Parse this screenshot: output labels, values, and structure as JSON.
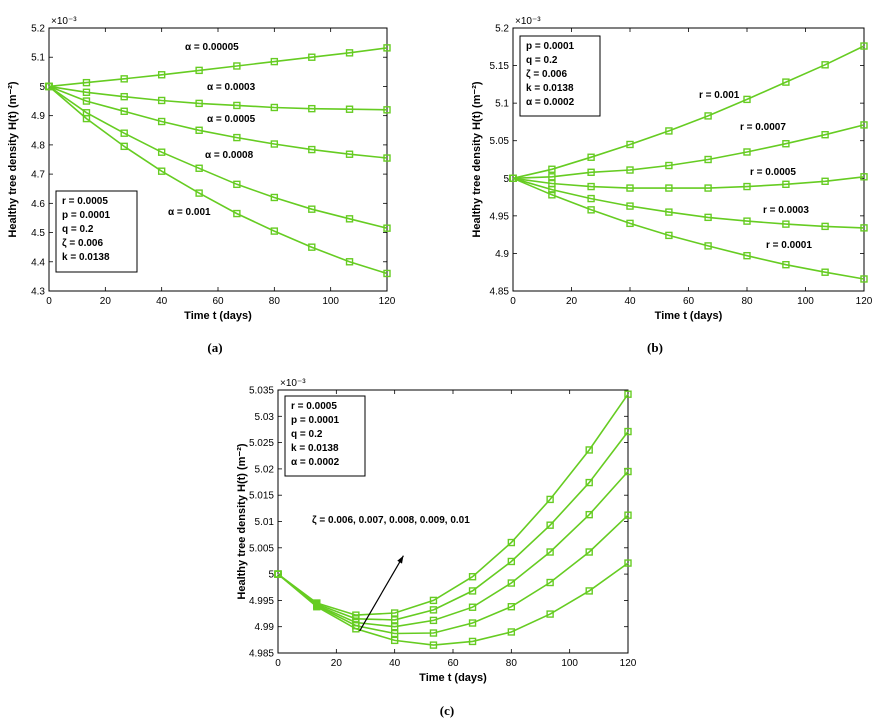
{
  "line_color": "#66cc22",
  "chart_data": [
    {
      "id": "a",
      "type": "line",
      "caption": "(a)",
      "xlabel": "Time  t (days)",
      "ylabel": "Healthy tree density H(t) (m⁻²)",
      "exponent": "×10⁻³",
      "xlim": [
        0,
        120
      ],
      "ylim": [
        4.3,
        5.2
      ],
      "xticks": [
        "0",
        "20",
        "40",
        "60",
        "80",
        "100",
        "120"
      ],
      "yticks": [
        "4.3",
        "4.4",
        "4.5",
        "4.6",
        "4.7",
        "4.8",
        "4.9",
        "5",
        "5.1",
        "5.2"
      ],
      "x": [
        0,
        13.3,
        26.7,
        40,
        53.3,
        66.7,
        80,
        93.3,
        106.7,
        120
      ],
      "series": [
        {
          "name": "α = 0.00005",
          "values": [
            5.0,
            5.013,
            5.026,
            5.04,
            5.055,
            5.07,
            5.085,
            5.1,
            5.115,
            5.132
          ]
        },
        {
          "name": "α = 0.0003",
          "values": [
            5.0,
            4.98,
            4.965,
            4.952,
            4.942,
            4.935,
            4.928,
            4.924,
            4.922,
            4.92
          ]
        },
        {
          "name": "α = 0.0005",
          "values": [
            5.0,
            4.95,
            4.915,
            4.88,
            4.85,
            4.825,
            4.803,
            4.784,
            4.768,
            4.755
          ]
        },
        {
          "name": "α = 0.0008",
          "values": [
            5.0,
            4.91,
            4.84,
            4.775,
            4.72,
            4.665,
            4.62,
            4.58,
            4.547,
            4.515
          ]
        },
        {
          "name": "α = 0.001",
          "values": [
            5.0,
            4.89,
            4.795,
            4.71,
            4.635,
            4.565,
            4.505,
            4.45,
            4.4,
            4.36
          ]
        }
      ],
      "params": [
        "r = 0.0005",
        "p = 0.0001",
        "q = 0.2",
        "ζ = 0.006",
        "k = 0.0138"
      ]
    },
    {
      "id": "b",
      "type": "line",
      "caption": "(b)",
      "xlabel": "Time t (days)",
      "ylabel": "Healthy tree density H(t) (m⁻²)",
      "exponent": "×10⁻³",
      "xlim": [
        0,
        120
      ],
      "ylim": [
        4.85,
        5.2
      ],
      "xticks": [
        "0",
        "20",
        "40",
        "60",
        "80",
        "100",
        "120"
      ],
      "yticks": [
        "4.85",
        "4.9",
        "4.95",
        "5",
        "5.05",
        "5.1",
        "5.15",
        "5.2"
      ],
      "x": [
        0,
        13.3,
        26.7,
        40,
        53.3,
        66.7,
        80,
        93.3,
        106.7,
        120
      ],
      "series": [
        {
          "name": "r = 0.001",
          "values": [
            5.0,
            5.012,
            5.028,
            5.045,
            5.063,
            5.083,
            5.105,
            5.128,
            5.151,
            5.176
          ]
        },
        {
          "name": "r = 0.0007",
          "values": [
            5.0,
            5.002,
            5.008,
            5.011,
            5.017,
            5.025,
            5.035,
            5.046,
            5.058,
            5.071
          ]
        },
        {
          "name": "r = 0.0005",
          "values": [
            5.0,
            4.993,
            4.989,
            4.987,
            4.987,
            4.987,
            4.989,
            4.992,
            4.996,
            5.002
          ]
        },
        {
          "name": "r = 0.0003",
          "values": [
            5.0,
            4.985,
            4.973,
            4.963,
            4.955,
            4.948,
            4.943,
            4.939,
            4.936,
            4.934
          ]
        },
        {
          "name": "r = 0.0001",
          "values": [
            5.0,
            4.978,
            4.958,
            4.94,
            4.924,
            4.91,
            4.897,
            4.885,
            4.875,
            4.866
          ]
        }
      ],
      "params": [
        "p = 0.0001",
        "q = 0.2",
        "ζ = 0.006",
        "k = 0.0138",
        "α = 0.0002"
      ]
    },
    {
      "id": "c",
      "type": "line",
      "caption": "(c)",
      "xlabel": "Time t (days)",
      "ylabel": "Healthy tree density H(t) (m⁻²)",
      "exponent": "×10⁻³",
      "xlim": [
        0,
        120
      ],
      "ylim": [
        4.985,
        5.035
      ],
      "xticks": [
        "0",
        "20",
        "40",
        "60",
        "80",
        "100",
        "120"
      ],
      "yticks": [
        "4.985",
        "4.99",
        "4.995",
        "5",
        "5.005",
        "5.01",
        "5.015",
        "5.02",
        "5.025",
        "5.03",
        "5.035"
      ],
      "x": [
        0,
        13.3,
        26.7,
        40,
        53.3,
        66.7,
        80,
        93.3,
        106.7,
        120
      ],
      "series": [
        {
          "values": [
            5.0,
            4.9945,
            4.9922,
            4.9926,
            4.995,
            4.9995,
            5.006,
            5.0142,
            5.0236,
            5.0342
          ]
        },
        {
          "values": [
            5.0,
            4.9943,
            4.9915,
            4.9913,
            4.9932,
            4.9968,
            5.0024,
            5.0093,
            5.0174,
            5.0271
          ]
        },
        {
          "values": [
            5.0,
            4.9941,
            4.9908,
            4.99,
            4.9912,
            4.9937,
            4.9983,
            5.0042,
            5.0113,
            5.0195
          ]
        },
        {
          "values": [
            5.0,
            4.994,
            4.9902,
            4.9887,
            4.9888,
            4.9907,
            4.9938,
            4.9984,
            5.0042,
            5.0112
          ]
        },
        {
          "values": [
            5.0,
            4.9938,
            4.9896,
            4.9874,
            4.9865,
            4.9872,
            4.989,
            4.9924,
            4.9968,
            5.0021
          ]
        }
      ],
      "params": [
        "r = 0.0005",
        "p = 0.0001",
        "q = 0.2",
        "k = 0.0138",
        "α = 0.0002"
      ],
      "annotation": "ζ = 0.006, 0.007, 0.008, 0.009, 0.01"
    }
  ]
}
